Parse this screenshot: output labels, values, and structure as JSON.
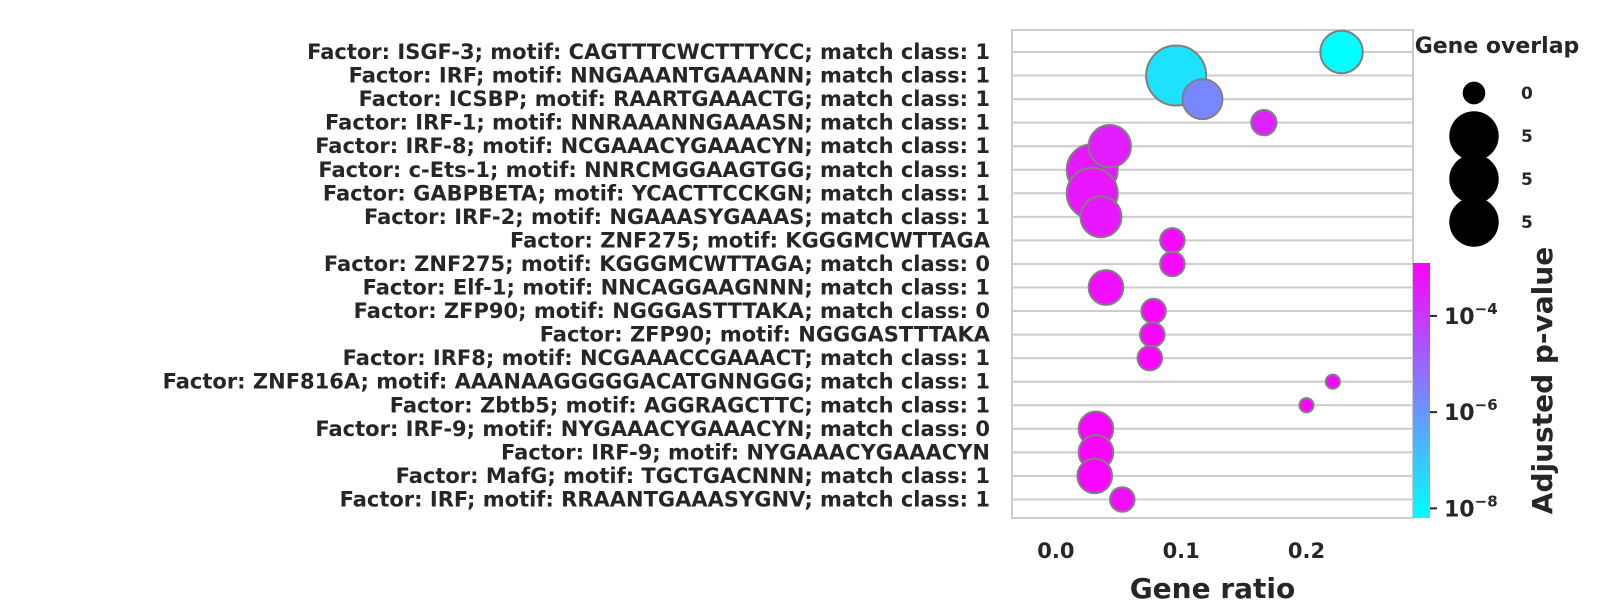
{
  "chart_data": {
    "type": "scatter",
    "xlabel": "Gene ratio",
    "xlim": [
      -0.035,
      0.285
    ],
    "xticks": [
      {
        "value": 0.0,
        "label": "0.0"
      },
      {
        "value": 0.1,
        "label": "0.1"
      },
      {
        "value": 0.2,
        "label": "0.2"
      }
    ],
    "grid": true,
    "categories": [
      "Factor: ISGF-3; motif: CAGTTTCWCTTTYCC; match class: 1",
      "Factor: IRF; motif: NNGAAANTGAAANN; match class: 1",
      "Factor: ICSBP; motif: RAARTGAAACTG; match class: 1",
      "Factor: IRF-1; motif: NNRAAANNGAAASN; match class: 1",
      "Factor: IRF-8; motif: NCGAAACYGAAACYN; match class: 1",
      "Factor: c-Ets-1; motif: NNRCMGGAAGTGG; match class: 1",
      "Factor: GABPBETA; motif: YCACTTCCKGN; match class: 1",
      "Factor: IRF-2; motif: NGAAASYGAAAS; match class: 1",
      "Factor: ZNF275; motif: KGGGMCWTTAGA",
      "Factor: ZNF275; motif: KGGGMCWTTAGA; match class: 0",
      "Factor: Elf-1; motif: NNCAGGAAGNNN; match class: 1",
      "Factor: ZFP90; motif: NGGGASTTTAKA; match class: 0",
      "Factor: ZFP90; motif: NGGGASTTTAKA",
      "Factor: IRF8; motif: NCGAAACCGAAACT; match class: 1",
      "Factor: ZNF816A; motif: AAANAAGGGGGACATGNNGGG; match class: 1",
      "Factor: Zbtb5; motif: AGGRAGCTTC; match class: 1",
      "Factor: IRF-9; motif: NYGAAACYGAAACYN; match class: 0",
      "Factor: IRF-9; motif: NYGAAACYGAAACYN",
      "Factor: MafG; motif: TGCTGACNNN; match class: 1",
      "Factor: IRF; motif: RRAANTGAAASYGNV; match class: 1"
    ],
    "points": [
      {
        "x": 0.228,
        "size": 4.5,
        "log10p": -8.6
      },
      {
        "x": 0.096,
        "size": 9.0,
        "log10p": -7.6
      },
      {
        "x": 0.117,
        "size": 4.0,
        "log10p": -5.7
      },
      {
        "x": 0.166,
        "size": 1.6,
        "log10p": -3.6
      },
      {
        "x": 0.043,
        "size": 4.5,
        "log10p": -3.5
      },
      {
        "x": 0.029,
        "size": 6.5,
        "log10p": -3.4
      },
      {
        "x": 0.029,
        "size": 6.5,
        "log10p": -3.4
      },
      {
        "x": 0.036,
        "size": 4.2,
        "log10p": -3.4
      },
      {
        "x": 0.093,
        "size": 1.5,
        "log10p": -3.1
      },
      {
        "x": 0.093,
        "size": 1.5,
        "log10p": -3.1
      },
      {
        "x": 0.04,
        "size": 3.0,
        "log10p": -3.2
      },
      {
        "x": 0.078,
        "size": 1.5,
        "log10p": -3.0
      },
      {
        "x": 0.077,
        "size": 1.5,
        "log10p": -3.0
      },
      {
        "x": 0.075,
        "size": 1.5,
        "log10p": -3.0
      },
      {
        "x": 0.221,
        "size": 0.5,
        "log10p": -3.0
      },
      {
        "x": 0.2,
        "size": 0.5,
        "log10p": -3.0
      },
      {
        "x": 0.032,
        "size": 3.0,
        "log10p": -3.0
      },
      {
        "x": 0.032,
        "size": 3.0,
        "log10p": -3.0
      },
      {
        "x": 0.031,
        "size": 3.0,
        "log10p": -3.0
      },
      {
        "x": 0.053,
        "size": 1.5,
        "log10p": -3.2
      }
    ],
    "size_legend": {
      "title": "Gene overlap",
      "entries": [
        {
          "label": "0",
          "size": 0.5
        },
        {
          "label": "5",
          "size": 6.5
        },
        {
          "label": "5",
          "size": 6.5
        },
        {
          "label": "5",
          "size": 6.5
        }
      ]
    },
    "colorbar": {
      "label": "Adjusted p-value",
      "scale": "log",
      "range_log10": [
        -8.2,
        -2.9
      ],
      "ticks": [
        {
          "log10": -4,
          "label": "10",
          "exp": "−4"
        },
        {
          "log10": -6,
          "label": "10",
          "exp": "−6"
        },
        {
          "log10": -8,
          "label": "10",
          "exp": "−8"
        }
      ],
      "colormap": "cool",
      "colors": {
        "low": "#00ffff",
        "high": "#ff00ff"
      }
    },
    "colors": {
      "grid": "#cccccc",
      "spine": "#cccccc",
      "marker_edge": "#808080",
      "text": "#262626"
    }
  }
}
